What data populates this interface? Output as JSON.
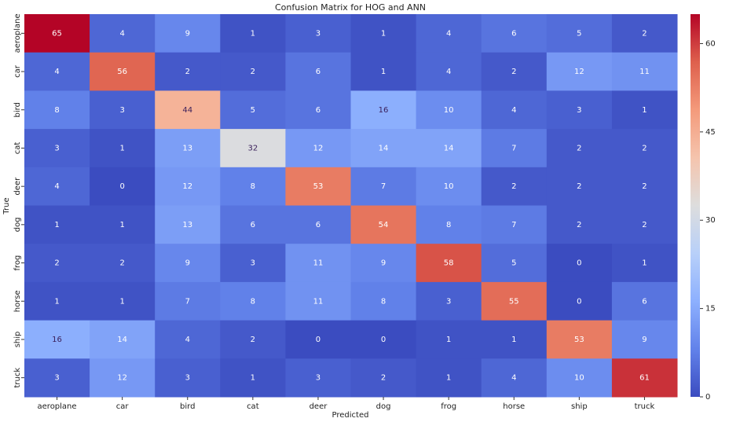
{
  "chart_data": {
    "type": "heatmap",
    "title": "Confusion Matrix for HOG and ANN",
    "xlabel": "Predicted",
    "ylabel": "True",
    "x_categories": [
      "aeroplane",
      "car",
      "bird",
      "cat",
      "deer",
      "dog",
      "frog",
      "horse",
      "ship",
      "truck"
    ],
    "y_categories": [
      "aeroplane",
      "car",
      "bird",
      "cat",
      "deer",
      "dog",
      "frog",
      "horse",
      "ship",
      "truck"
    ],
    "values": [
      [
        65,
        4,
        9,
        1,
        3,
        1,
        4,
        6,
        5,
        2
      ],
      [
        4,
        56,
        2,
        2,
        6,
        1,
        4,
        2,
        12,
        11
      ],
      [
        8,
        3,
        44,
        5,
        6,
        16,
        10,
        4,
        3,
        1
      ],
      [
        3,
        1,
        13,
        32,
        12,
        14,
        14,
        7,
        2,
        2
      ],
      [
        4,
        0,
        12,
        8,
        53,
        7,
        10,
        2,
        2,
        2
      ],
      [
        1,
        1,
        13,
        6,
        6,
        54,
        8,
        7,
        2,
        2
      ],
      [
        2,
        2,
        9,
        3,
        11,
        9,
        58,
        5,
        0,
        1
      ],
      [
        1,
        1,
        7,
        8,
        11,
        8,
        3,
        55,
        0,
        6
      ],
      [
        16,
        14,
        4,
        2,
        0,
        0,
        1,
        1,
        53,
        9
      ],
      [
        3,
        12,
        3,
        1,
        3,
        2,
        1,
        4,
        10,
        61
      ]
    ],
    "colormap": "coolwarm",
    "clim": [
      0,
      65
    ],
    "cticks": [
      0,
      15,
      30,
      45,
      60
    ]
  }
}
